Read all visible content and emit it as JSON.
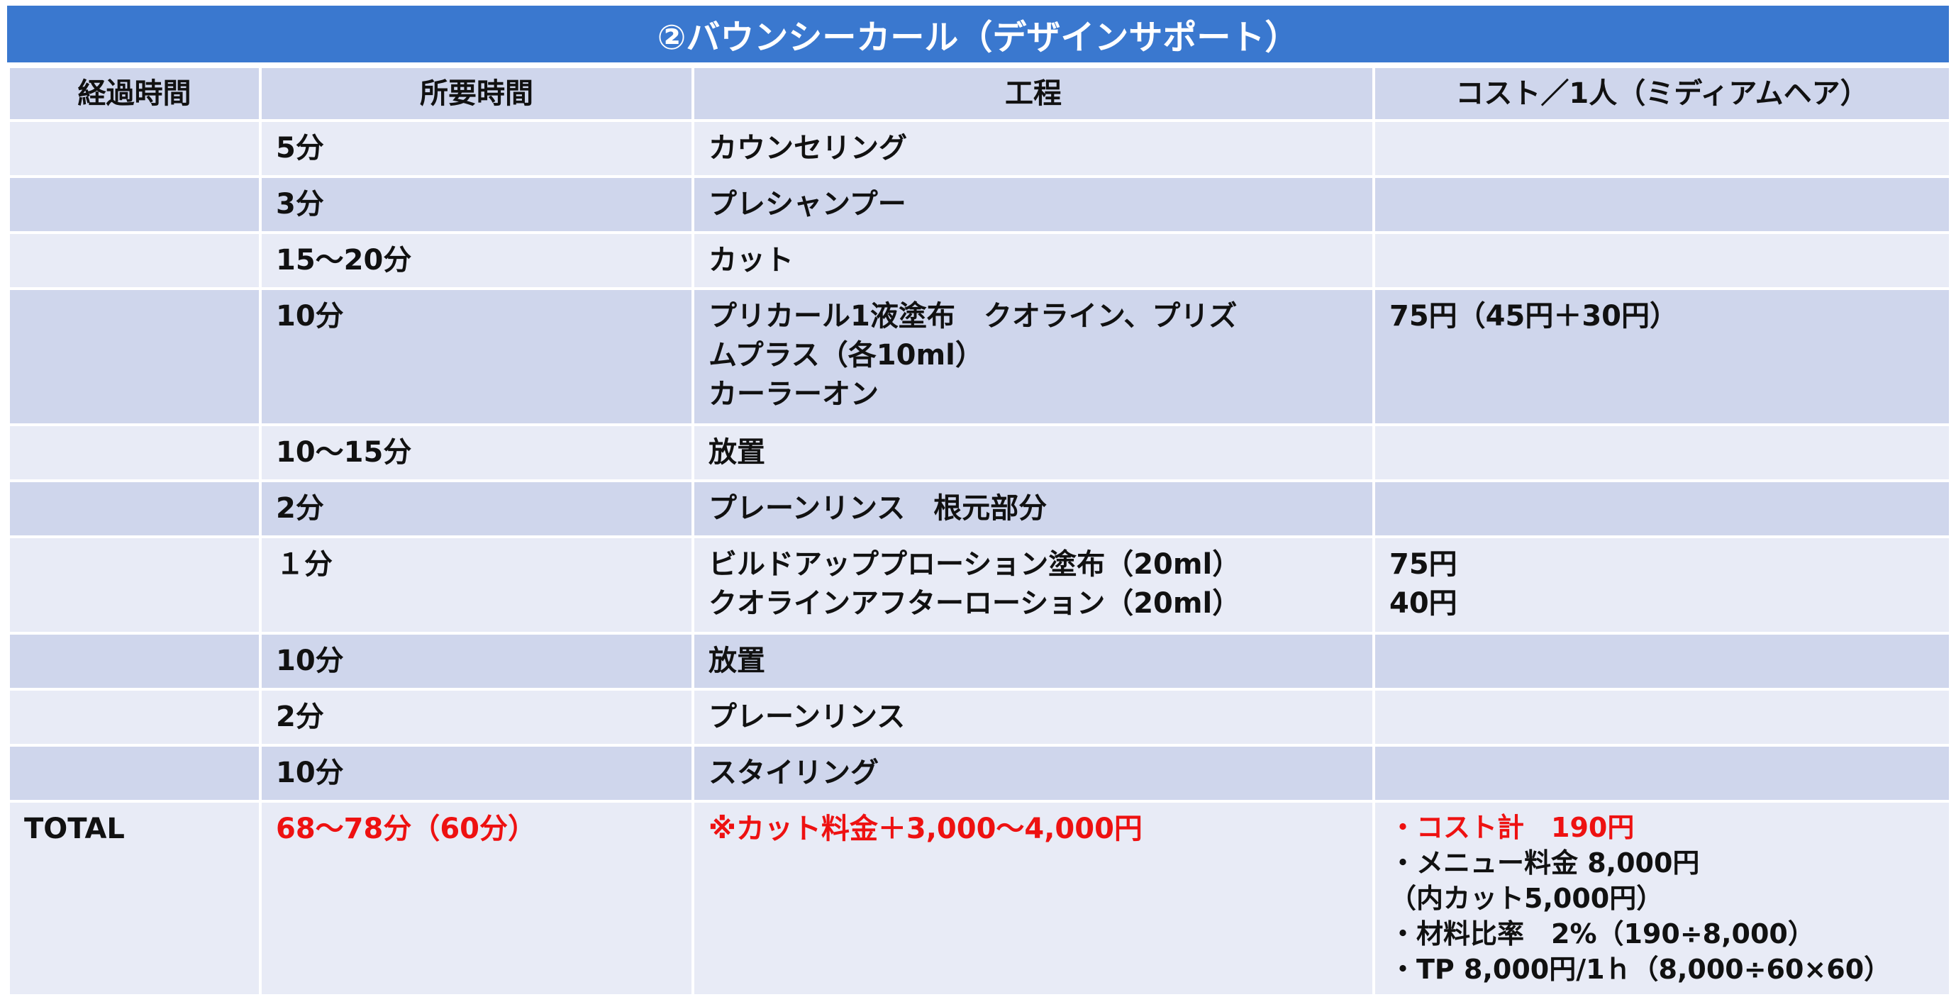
{
  "title": "②バウンシーカール（デザインサポート）",
  "headers": [
    "経過時間",
    "所要時間",
    "工程",
    "コスト／1人（ミディアムヘア）"
  ],
  "rows": [
    {
      "elapsed": "",
      "duration": "5分",
      "process": [
        "カウンセリング"
      ],
      "cost": []
    },
    {
      "elapsed": "",
      "duration": "3分",
      "process": [
        "プレシャンプー"
      ],
      "cost": []
    },
    {
      "elapsed": "",
      "duration": "15～20分",
      "process": [
        "カット"
      ],
      "cost": []
    },
    {
      "elapsed": "",
      "duration": "10分",
      "process": [
        "プリカール1液塗布　クオライン、プリズ",
        "ムプラス（各10ml）",
        "カーラーオン"
      ],
      "cost": [
        "75円（45円＋30円）"
      ]
    },
    {
      "elapsed": "",
      "duration": "10～15分",
      "process": [
        "放置"
      ],
      "cost": []
    },
    {
      "elapsed": "",
      "duration": "2分",
      "process": [
        "プレーンリンス　根元部分"
      ],
      "cost": []
    },
    {
      "elapsed": "",
      "duration": "１分",
      "process": [
        "ビルドアッププローション塗布（20ml）",
        "クオラインアフターローション（20ml）"
      ],
      "cost": [
        "75円",
        "40円"
      ]
    },
    {
      "elapsed": "",
      "duration": "10分",
      "process": [
        "放置"
      ],
      "cost": []
    },
    {
      "elapsed": "",
      "duration": "2分",
      "process": [
        "プレーンリンス"
      ],
      "cost": []
    },
    {
      "elapsed": "",
      "duration": "10分",
      "process": [
        "スタイリング"
      ],
      "cost": []
    }
  ],
  "total": {
    "label": "TOTAL",
    "duration": "68～78分（60分）",
    "process": "※カット料金＋3,000～4,000円",
    "summary": [
      "・コスト計　190円",
      "・メニュー料金 8,000円",
      "（内カット5,000円）",
      "・材料比率　2%（190÷8,000）",
      "・TP 8,000円/1ｈ（8,000÷60×60）"
    ]
  },
  "colors": {
    "header_bar": "#3a78cf",
    "row_light": "#e8ebf6",
    "row_dark": "#cfd6ec",
    "accent_red": "#ee1111"
  }
}
